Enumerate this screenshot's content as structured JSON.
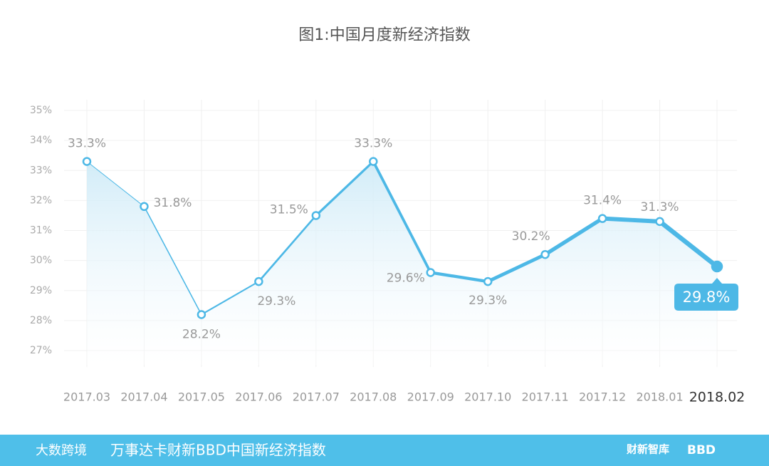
{
  "chart_data": {
    "type": "line",
    "title": "图1:中国月度新经济指数",
    "categories": [
      "2017.03",
      "2017.04",
      "2017.05",
      "2017.06",
      "2017.07",
      "2017.08",
      "2017.09",
      "2017.10",
      "2017.11",
      "2017.12",
      "2018.01",
      "2018.02"
    ],
    "values": [
      33.3,
      31.8,
      28.2,
      29.3,
      31.5,
      33.3,
      29.6,
      29.3,
      30.2,
      31.4,
      31.3,
      29.8
    ],
    "value_labels": [
      "33.3%",
      "31.8%",
      "28.2%",
      "29.3%",
      "31.5%",
      "33.3%",
      "29.6%",
      "29.3%",
      "30.2%",
      "31.4%",
      "31.3%",
      "29.8%"
    ],
    "color": "#4db8e6",
    "ylim": [
      27,
      35
    ],
    "yticks": [
      {
        "value": 27,
        "label": "27%"
      },
      {
        "value": 28,
        "label": "28%"
      },
      {
        "value": 29,
        "label": "29%"
      },
      {
        "value": 30,
        "label": "30%"
      },
      {
        "value": 31,
        "label": "31%"
      },
      {
        "value": 32,
        "label": "32%"
      },
      {
        "value": 33,
        "label": "33%"
      },
      {
        "value": 34,
        "label": "34%"
      },
      {
        "value": 35,
        "label": "35%"
      }
    ],
    "grid": true
  },
  "footer": {
    "brand": "大数跨境",
    "caption": "万事达卡财新BBD中国新经济指数",
    "logo1": "财新智库",
    "logo2": "BBD"
  }
}
